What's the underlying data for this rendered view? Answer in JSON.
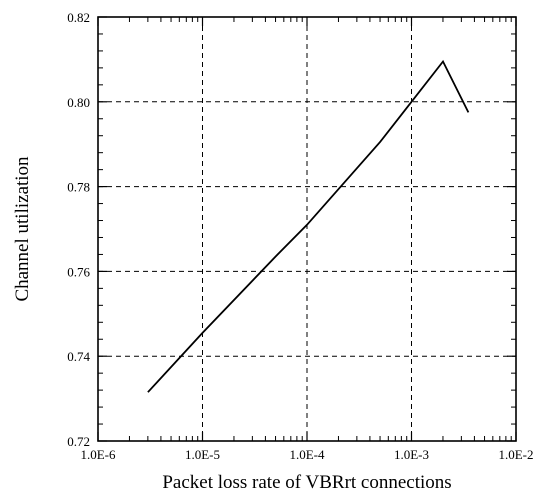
{
  "chart_data": {
    "type": "line",
    "title": "",
    "xlabel": "Packet loss rate of VBRrt connections",
    "ylabel": "Channel utilization",
    "x_scale": "log",
    "xlim": [
      1e-06,
      0.01
    ],
    "ylim": [
      0.72,
      0.82
    ],
    "x_ticks": [
      {
        "value": 1e-06,
        "label": "1.0E-6"
      },
      {
        "value": 1e-05,
        "label": "1.0E-5"
      },
      {
        "value": 0.0001,
        "label": "1.0E-4"
      },
      {
        "value": 0.001,
        "label": "1.0E-3"
      },
      {
        "value": 0.01,
        "label": "1.0E-2"
      }
    ],
    "y_ticks": [
      {
        "value": 0.72,
        "label": "0.72"
      },
      {
        "value": 0.74,
        "label": "0.74"
      },
      {
        "value": 0.76,
        "label": "0.76"
      },
      {
        "value": 0.78,
        "label": "0.78"
      },
      {
        "value": 0.8,
        "label": "0.80"
      },
      {
        "value": 0.82,
        "label": "0.82"
      }
    ],
    "grid": true,
    "grid_style": "dashed",
    "legend": "none",
    "series": [
      {
        "x": [
          3e-06,
          1e-05,
          5e-05,
          0.0001,
          0.0005,
          0.001,
          0.002,
          0.0035
        ],
        "y": [
          0.7315,
          0.7455,
          0.7635,
          0.771,
          0.7905,
          0.8,
          0.8095,
          0.7975
        ]
      }
    ],
    "colors": {
      "line": "#000000",
      "grid": "#000000",
      "frame": "#000000"
    }
  }
}
